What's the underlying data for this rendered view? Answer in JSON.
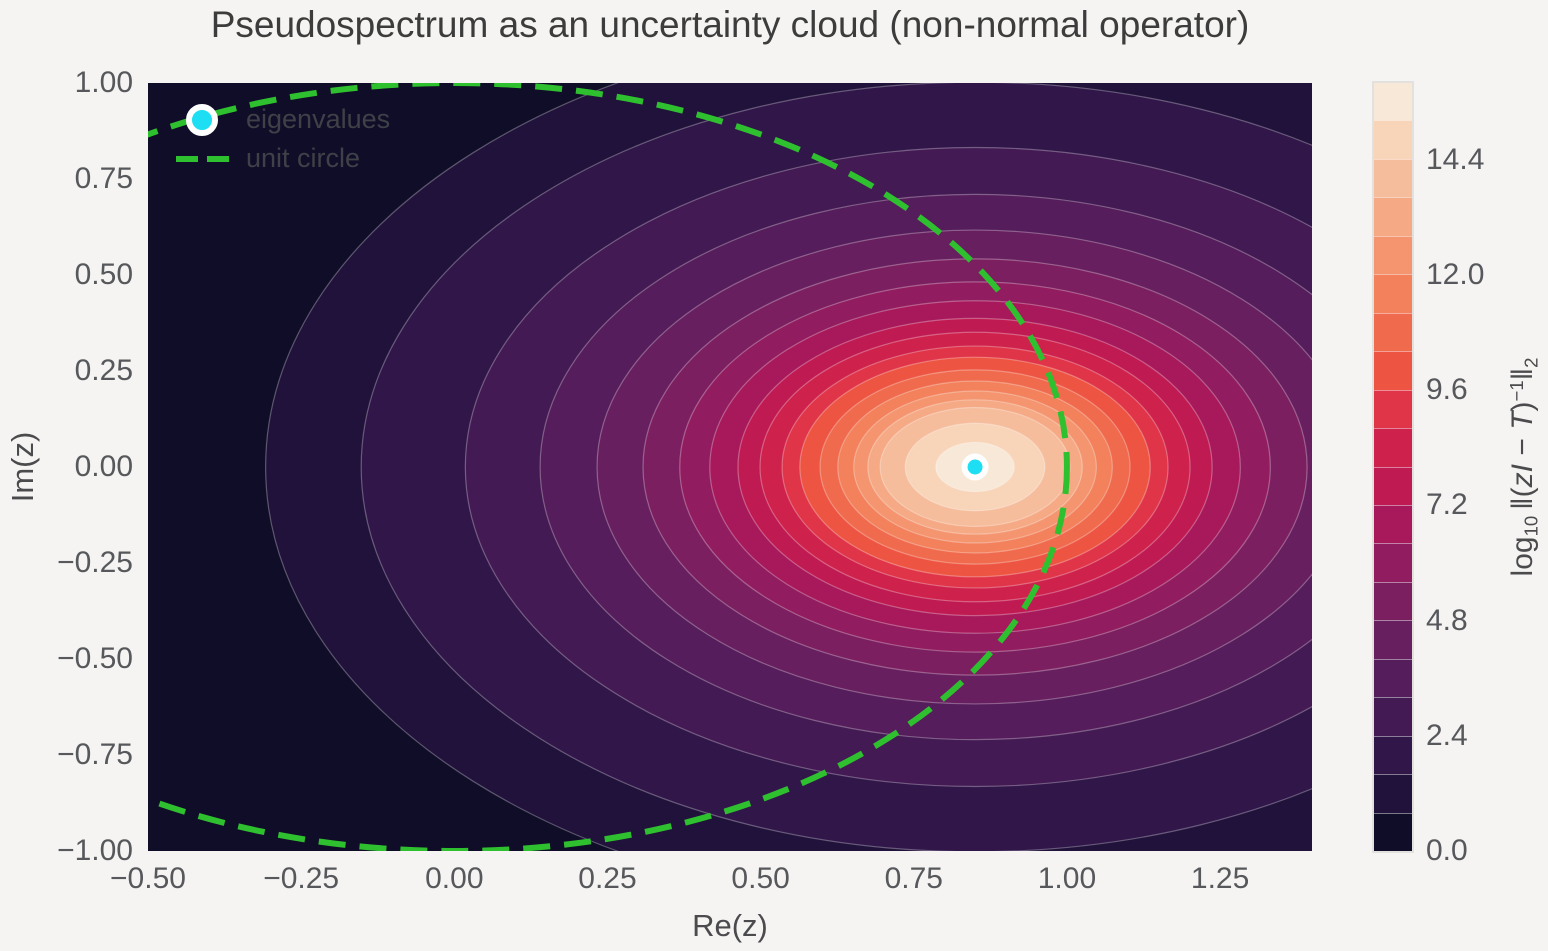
{
  "chart_data": {
    "type": "heatmap",
    "subtype": "filled-contour-pseudospectrum",
    "title": "Pseudospectrum as an uncertainty cloud (non-normal operator)",
    "xlabel": "Re(z)",
    "ylabel": "Im(z)",
    "xlim": [
      -0.5,
      1.4
    ],
    "ylim": [
      -1.0,
      1.0
    ],
    "x_tick_labels": [
      "−0.50",
      "−0.25",
      "0.00",
      "0.25",
      "0.50",
      "0.75",
      "1.00",
      "1.25"
    ],
    "x_tick_values": [
      -0.5,
      -0.25,
      0.0,
      0.25,
      0.5,
      0.75,
      1.0,
      1.25
    ],
    "y_tick_labels": [
      "1.00",
      "0.75",
      "0.50",
      "0.25",
      "0.00",
      "−0.25",
      "−0.50",
      "−0.75",
      "−1.00"
    ],
    "y_tick_values": [
      1.0,
      0.75,
      0.5,
      0.25,
      0.0,
      -0.25,
      -0.5,
      -0.75,
      -1.0
    ],
    "grid": false,
    "legend_position": "upper-left",
    "legend": [
      {
        "label": "eigenvalues",
        "marker": "filled-dot",
        "color": "#1ddef2"
      },
      {
        "label": "unit circle",
        "marker": "dashed-line",
        "color": "#2fc02f"
      }
    ],
    "eigenvalues": [
      {
        "re": 0.85,
        "im": 0.0
      }
    ],
    "unit_circle": {
      "center_re": 0.0,
      "center_im": 0.0,
      "radius": 1.0
    },
    "field_label_parts": [
      {
        "text": "log",
        "type": "normal"
      },
      {
        "text": "10",
        "type": "sub"
      },
      {
        "text": " ‖(",
        "type": "normal"
      },
      {
        "text": "zI",
        "type": "italic"
      },
      {
        "text": " − ",
        "type": "normal"
      },
      {
        "text": "T",
        "type": "italic"
      },
      {
        "text": ")",
        "type": "normal"
      },
      {
        "text": "−1",
        "type": "sup"
      },
      {
        "text": "‖",
        "type": "normal"
      },
      {
        "text": "2",
        "type": "sub"
      }
    ],
    "colorbar": {
      "vmin": 0.0,
      "vmax": 16.0,
      "n_bands": 20,
      "level_step": 0.8,
      "tick_labels": [
        "0.0",
        "2.4",
        "4.8",
        "7.2",
        "9.6",
        "12.0",
        "14.4"
      ],
      "tick_values": [
        0.0,
        2.4,
        4.8,
        7.2,
        9.6,
        12.0,
        14.4
      ],
      "band_colors": [
        "#100d28",
        "#20123a",
        "#31164a",
        "#431a53",
        "#551d5b",
        "#681f5f",
        "#7c1f60",
        "#911c5f",
        "#a7195b",
        "#c01a52",
        "#ce224c",
        "#e03448",
        "#ed5542",
        "#f06b4d",
        "#f2815c",
        "#f4956f",
        "#f5a985",
        "#f6bd9d",
        "#f8d4b9",
        "#f8e8d8"
      ]
    },
    "contour_bands": {
      "center_re": 0.85,
      "center_im": 0.0,
      "boundary_values": [
        0.8,
        1.6,
        2.4,
        3.2,
        4.0,
        4.8,
        5.6,
        6.4,
        7.2,
        8.0,
        8.8,
        9.6,
        10.4,
        11.2,
        12.0,
        12.8,
        13.6,
        14.4,
        15.2
      ],
      "boundary_radii": [
        1.158,
        1.002,
        0.832,
        0.71,
        0.617,
        0.542,
        0.482,
        0.433,
        0.387,
        0.351,
        0.315,
        0.286,
        0.253,
        0.224,
        0.198,
        0.175,
        0.155,
        0.114,
        0.064
      ]
    }
  },
  "style": {
    "figure_background": "#f5f4f2",
    "plot_background": "#100d28",
    "title_color": "#3c3c3c",
    "tick_color": "#57585c",
    "axis_label_color": "#4b4b4e",
    "legend_text_color": "#3e4147",
    "eigenvalue_color": "#1ddef2",
    "eigenvalue_edge_color": "#ffffff",
    "unit_circle_color": "#2fc02f",
    "contour_line_color": "rgba(255,255,255,0.30)"
  }
}
